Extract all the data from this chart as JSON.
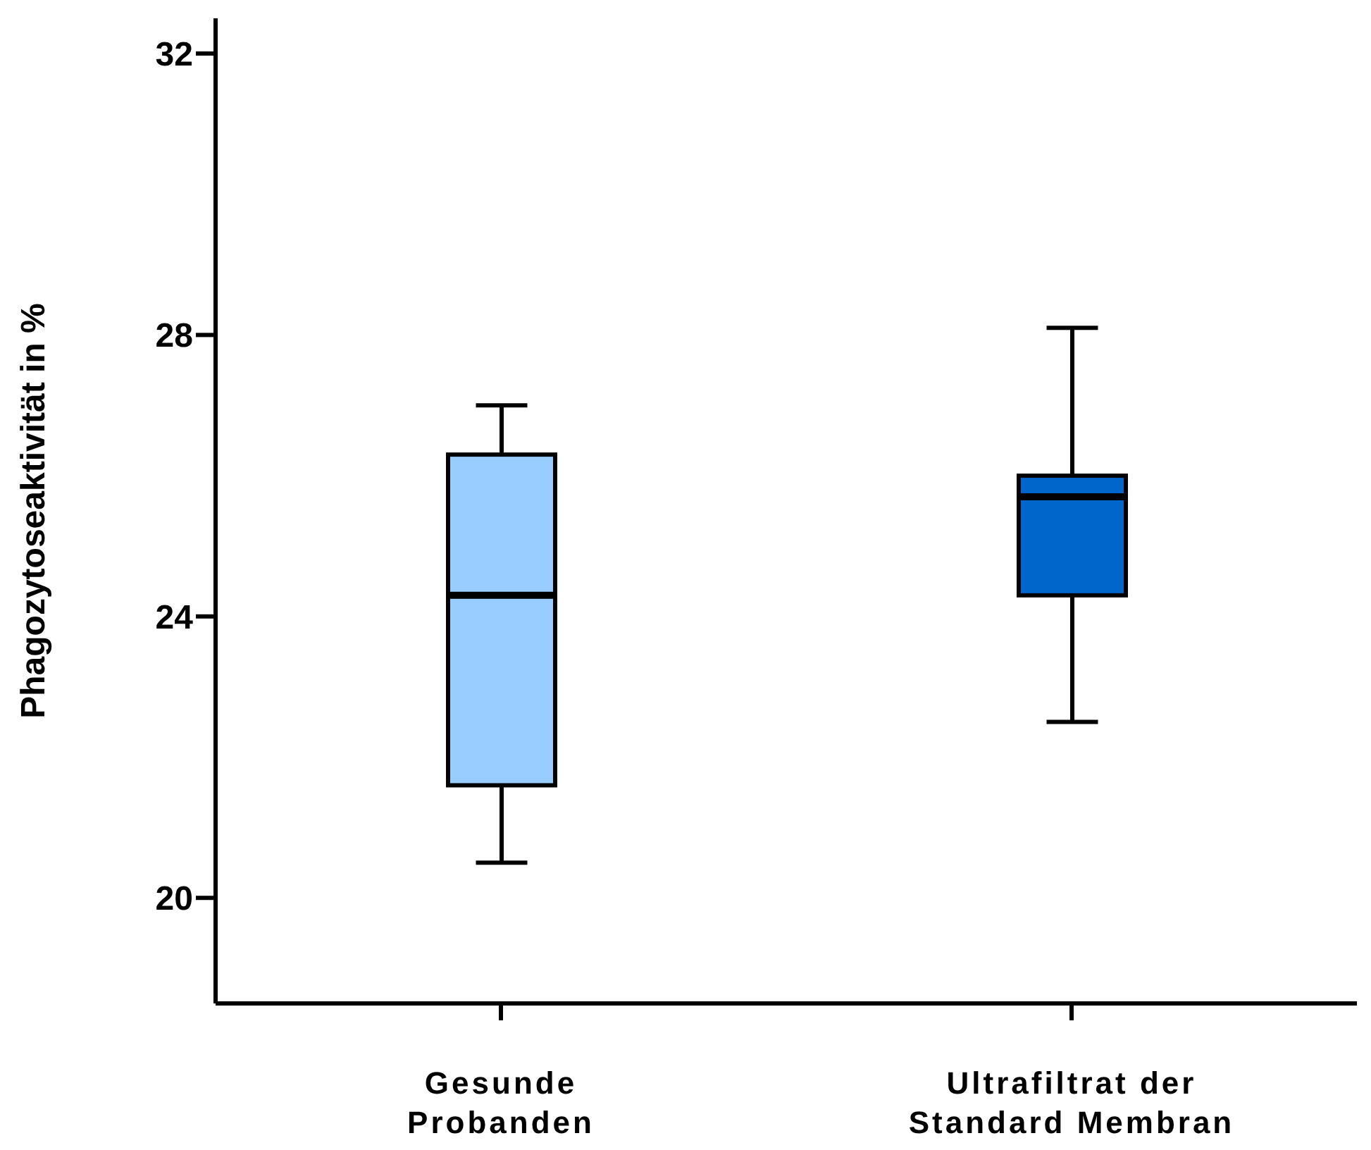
{
  "chart_data": {
    "type": "box",
    "ylabel": "Phagozytoseaktivität in %",
    "categories": [
      "Gesunde Probanden",
      "Ultrafiltrat der Standard Membran"
    ],
    "colors": [
      "#99ccff",
      "#0066cc"
    ],
    "boxes": [
      {
        "low": 20.5,
        "q1": 21.6,
        "median": 24.3,
        "q3": 26.3,
        "high": 27.0
      },
      {
        "low": 22.5,
        "q1": 24.3,
        "median": 25.7,
        "q3": 26.0,
        "high": 28.1
      }
    ],
    "ylim": [
      18.5,
      32.5
    ],
    "yticks": [
      20,
      24,
      28,
      32
    ]
  }
}
